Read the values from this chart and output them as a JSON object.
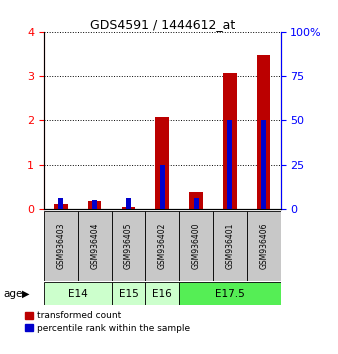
{
  "title": "GDS4591 / 1444612_at",
  "samples": [
    "GSM936403",
    "GSM936404",
    "GSM936405",
    "GSM936402",
    "GSM936400",
    "GSM936401",
    "GSM936406"
  ],
  "red_values": [
    0.1,
    0.18,
    0.05,
    2.07,
    0.37,
    3.08,
    3.48
  ],
  "blue_values_pct": [
    6,
    5,
    6,
    25,
    6,
    50,
    50
  ],
  "age_groups": [
    {
      "label": "E14",
      "start": 0,
      "end": 1,
      "color": "#ccffcc"
    },
    {
      "label": "E15",
      "start": 2,
      "end": 2,
      "color": "#ccffcc"
    },
    {
      "label": "E16",
      "start": 3,
      "end": 3,
      "color": "#ccffcc"
    },
    {
      "label": "E17.5",
      "start": 4,
      "end": 6,
      "color": "#55ee55"
    }
  ],
  "ylim_left": [
    0,
    4
  ],
  "ylim_right": [
    0,
    100
  ],
  "yticks_left": [
    0,
    1,
    2,
    3,
    4
  ],
  "yticks_right": [
    0,
    25,
    50,
    75,
    100
  ],
  "red_color": "#bb0000",
  "blue_color": "#0000cc",
  "label_red": "transformed count",
  "label_blue": "percentile rank within the sample",
  "age_label": "age",
  "sample_bg": "#c8c8c8",
  "red_bar_width": 0.4,
  "blue_bar_width": 0.15
}
